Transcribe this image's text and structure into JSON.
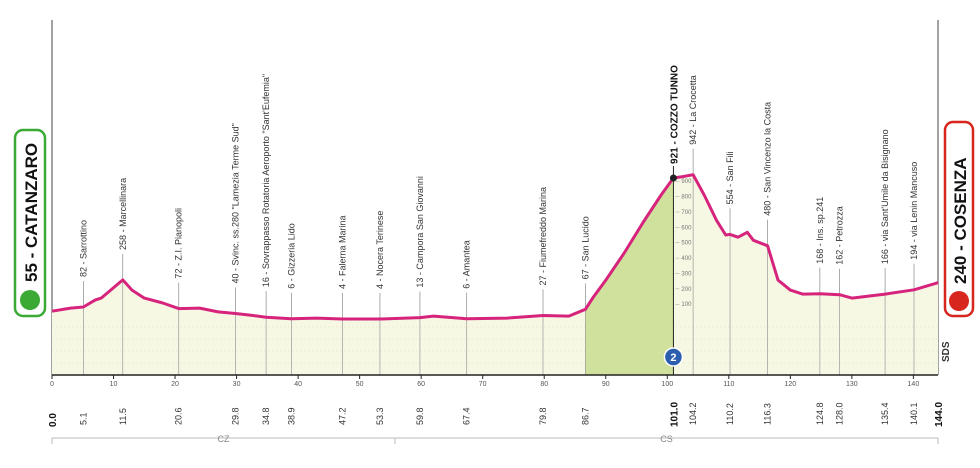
{
  "chart_data": {
    "type": "profile",
    "start": {
      "label": "55 - CATANZARO",
      "km": {
        "value": 0,
        "label": "0.0"
      }
    },
    "finish": {
      "label": "240 - COSENZA",
      "km": {
        "value": 144,
        "label": "144.0"
      }
    },
    "summit": {
      "label": "921 - COZZO TUNNO",
      "altitude": 921,
      "km": {
        "value": 101,
        "label": "101.0"
      },
      "category": "2"
    },
    "waypoints": [
      {
        "label": "82 - Sarrottino",
        "altitude": 82,
        "km": 5.1
      },
      {
        "label": "258 - Marcellinara",
        "altitude": 258,
        "km": 11.5
      },
      {
        "label": "72 - Z.I. Pianopoli",
        "altitude": 72,
        "km": 20.6
      },
      {
        "label": "40 - Svinc. ss.280 \"Lamezia Terme Sud\"",
        "altitude": 40,
        "km": 29.8
      },
      {
        "label": "16 - Sovrappasso Rotatoria Aeroporto \"Sant'Eufemia\"",
        "altitude": 16,
        "km": 34.8
      },
      {
        "label": "6 - Gizzeria Lido",
        "altitude": 6,
        "km": 38.9
      },
      {
        "label": "4 - Falerna Marina",
        "altitude": 4,
        "km": 47.2
      },
      {
        "label": "4 - Nocera Terinese",
        "altitude": 4,
        "km": 53.3
      },
      {
        "label": "13 - Campora San Giovanni",
        "altitude": 13,
        "km": 59.8
      },
      {
        "label": "6 - Amantea",
        "altitude": 6,
        "km": 67.4
      },
      {
        "label": "27 - Fiumefreddo Marina",
        "altitude": 27,
        "km": 79.8
      },
      {
        "label": "67 - San Lucido",
        "altitude": 67,
        "km": 86.7
      },
      {
        "label": "942 - La Crocetta",
        "altitude": 942,
        "km": 104.2
      },
      {
        "label": "554 - San Fili",
        "altitude": 554,
        "km": 110.2
      },
      {
        "label": "480 - San Vincenzo la Costa",
        "altitude": 480,
        "km": 116.3
      },
      {
        "label": "168 - Ins. sp.241",
        "altitude": 168,
        "km": 124.8
      },
      {
        "label": "162 - Petrozza",
        "altitude": 162,
        "km": {
          "value": 128,
          "label": "128.0"
        }
      },
      {
        "label": "166 - via Sant'Umile da Bisignano",
        "altitude": 166,
        "km": 135.4
      },
      {
        "label": "194 - via Lenin Mancuso",
        "altitude": 194,
        "km": 140.1
      }
    ],
    "profile": {
      "x": [
        0,
        3,
        5.1,
        7,
        8,
        11.5,
        13,
        15,
        18,
        20.6,
        24,
        27,
        29.8,
        32,
        34.8,
        38.9,
        43,
        47.2,
        53.3,
        59.8,
        62,
        67.4,
        74,
        79.8,
        84,
        86.7,
        88,
        90,
        93,
        96,
        99,
        101,
        102.5,
        104.2,
        106,
        108,
        109.5,
        110.2,
        111.5,
        113,
        114,
        116.3,
        118,
        120,
        122,
        124.8,
        128,
        130,
        135.4,
        140.1,
        144
      ],
      "values": [
        55,
        75,
        82,
        127,
        140,
        258,
        192,
        140,
        108,
        72,
        75,
        50,
        40,
        30,
        16,
        6,
        10,
        4,
        4,
        13,
        23,
        6,
        10,
        27,
        23,
        67,
        147,
        257,
        433,
        628,
        810,
        921,
        930,
        942,
        810,
        646,
        550,
        554,
        536,
        568,
        516,
        480,
        257,
        192,
        166,
        168,
        162,
        140,
        166,
        194,
        240
      ],
      "color": "#d6247d"
    },
    "xlim": [
      0,
      144
    ],
    "xticks": [
      0,
      10,
      20,
      30,
      40,
      50,
      60,
      70,
      80,
      90,
      100,
      110,
      120,
      130,
      140
    ],
    "ylim": [
      -360,
      1948
    ],
    "yticks": [
      100,
      200,
      300,
      400,
      500,
      600,
      700,
      800,
      900
    ],
    "regions": [
      "CZ",
      "CS"
    ],
    "sponsor": "SDS"
  }
}
